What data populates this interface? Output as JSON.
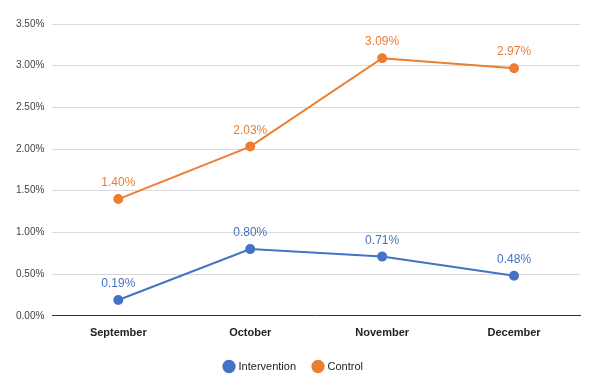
{
  "chart_data": {
    "type": "line",
    "categories": [
      "September",
      "October",
      "November",
      "December"
    ],
    "series": [
      {
        "name": "Intervention",
        "color": "#4472c4",
        "marker": "circle",
        "values": [
          0.19,
          0.8,
          0.71,
          0.48
        ],
        "value_labels": [
          "0.19%",
          "0.80%",
          "0.71%",
          "0.48%"
        ]
      },
      {
        "name": "Control",
        "color": "#ed7d31",
        "marker": "circle",
        "values": [
          1.4,
          2.03,
          3.09,
          2.97
        ],
        "value_labels": [
          "1.40%",
          "2.03%",
          "3.09%",
          "2.97%"
        ]
      }
    ],
    "ylim": [
      0,
      3.5
    ],
    "yticks": [
      {
        "value": 0,
        "label": "0.00%"
      },
      {
        "value": 0.5,
        "label": "0.50%"
      },
      {
        "value": 1,
        "label": "1.00%"
      },
      {
        "value": 1.5,
        "label": "1.50%"
      },
      {
        "value": 2,
        "label": "2.00%"
      },
      {
        "value": 2.5,
        "label": "2.50%"
      },
      {
        "value": 3,
        "label": "3.00%"
      },
      {
        "value": 3.5,
        "label": "3.50%"
      }
    ],
    "grid": true,
    "legend": "bottom",
    "data_labels": true
  }
}
